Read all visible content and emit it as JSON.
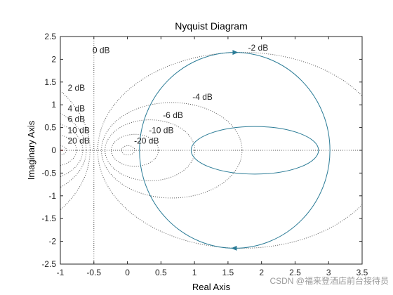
{
  "chart_data": {
    "type": "line",
    "title": "Nyquist Diagram",
    "xlabel": "Real Axis",
    "ylabel": "Imaginary Axis",
    "xlim": [
      -1,
      3.5
    ],
    "ylim": [
      -2.5,
      2.5
    ],
    "xticks": [
      "-1",
      "-0.5",
      "0",
      "0.5",
      "1",
      "1.5",
      "2",
      "2.5",
      "3",
      "3.5"
    ],
    "yticks": [
      "2.5",
      "2",
      "1.5",
      "1",
      "0.5",
      "0",
      "-0.5",
      "-1",
      "-1.5",
      "-2",
      "-2.5"
    ],
    "grid": "db-circles",
    "series": [
      {
        "color": "#2a7b96",
        "outer_loop": {
          "center": [
            1.6,
            0
          ],
          "radius": 1.42,
          "yscale": 1.515
        },
        "inner_loop": {
          "center": [
            1.9,
            0
          ],
          "radius": 0.95,
          "yscale": 0.55
        },
        "direction_markers": [
          [
            1.6,
            2.15
          ],
          [
            1.6,
            -2.15
          ]
        ],
        "critical_point": [
          -1,
          0
        ]
      }
    ],
    "db_contours": [
      {
        "label": "0 dB",
        "vertical_x": -0.5,
        "label_at": [
          -0.52,
          2.2
        ]
      },
      {
        "label": "-2 dB",
        "db": -2,
        "label_at": [
          1.8,
          2.25
        ]
      },
      {
        "label": "-4 dB",
        "db": -4,
        "label_at": [
          0.97,
          1.17
        ]
      },
      {
        "label": "-6 dB",
        "db": -6,
        "label_at": [
          0.53,
          0.77
        ]
      },
      {
        "label": "-10 dB",
        "db": -10,
        "label_at": [
          0.32,
          0.44
        ]
      },
      {
        "label": "-20 dB",
        "db": -20,
        "label_at": [
          0.1,
          0.21
        ]
      },
      {
        "label": "2 dB",
        "db": 2,
        "label_at": [
          -0.89,
          1.37
        ]
      },
      {
        "label": "4 dB",
        "db": 4,
        "label_at": [
          -0.89,
          0.92
        ]
      },
      {
        "label": "6 dB",
        "db": 6,
        "label_at": [
          -0.89,
          0.69
        ]
      },
      {
        "label": "10 dB",
        "db": 10,
        "label_at": [
          -0.89,
          0.44
        ]
      },
      {
        "label": "20 dB",
        "db": 20,
        "label_at": [
          -0.89,
          0.21
        ]
      }
    ]
  },
  "watermark": "CSDN @福来登酒店前台接待员"
}
